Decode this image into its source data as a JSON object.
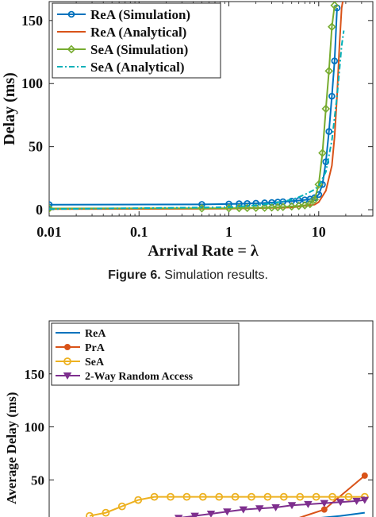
{
  "caption": {
    "label": "Figure 6.",
    "text": "Simulation results."
  },
  "chart_data": [
    {
      "type": "line",
      "xscale": "log",
      "xlabel": "Arrival Rate = λ",
      "ylabel": "Delay (ms)",
      "xlim": [
        0.01,
        40
      ],
      "ylim": [
        -5,
        165
      ],
      "xticks": [
        0.01,
        0.1,
        1,
        10
      ],
      "xtick_labels": [
        "0.01",
        "0.1",
        "1",
        "10"
      ],
      "yticks": [
        0,
        50,
        100,
        150
      ],
      "ytick_labels": [
        "0",
        "50",
        "100",
        "150"
      ],
      "legend_position": "top-left",
      "series": [
        {
          "name": "ReA (Simulation)",
          "color": "#0072BD",
          "marker": "circle",
          "dash": "solid",
          "x": [
            0.01,
            0.5,
            1,
            1.3,
            1.6,
            2,
            2.5,
            3,
            3.5,
            4,
            5,
            6,
            7,
            8,
            9,
            10,
            11,
            12,
            13,
            14,
            15,
            16
          ],
          "y": [
            4,
            4.2,
            4.5,
            4.7,
            4.9,
            5.1,
            5.4,
            5.7,
            6,
            6.3,
            6.8,
            7.3,
            7.8,
            8.4,
            9.5,
            12,
            20,
            38,
            62,
            90,
            118,
            160
          ]
        },
        {
          "name": "ReA (Analytical)",
          "color": "#D95319",
          "marker": "none",
          "dash": "solid",
          "x": [
            0.01,
            1,
            5,
            9,
            10,
            12,
            14,
            15,
            16,
            17,
            18,
            18.5
          ],
          "y": [
            0.5,
            0.8,
            1.8,
            4,
            6,
            15,
            35,
            58,
            90,
            130,
            160,
            165
          ]
        },
        {
          "name": "SeA (Simulation)",
          "color": "#77AC30",
          "marker": "diamond",
          "dash": "solid",
          "x": [
            0.01,
            0.5,
            1,
            1.3,
            1.6,
            2,
            2.5,
            3,
            3.5,
            4,
            5,
            6,
            7,
            8,
            9,
            10,
            11,
            12,
            13,
            14,
            15
          ],
          "y": [
            1,
            1.1,
            1.2,
            1.3,
            1.4,
            1.5,
            1.6,
            1.8,
            2,
            2.2,
            2.6,
            3,
            3.5,
            4.5,
            8,
            20,
            45,
            80,
            110,
            145,
            162
          ]
        },
        {
          "name": "SeA (Analytical)",
          "color": "#00B0B8",
          "marker": "none",
          "dash": "dashdot",
          "x": [
            0.01,
            1,
            2,
            3,
            4,
            5,
            6,
            7,
            8,
            9,
            10,
            12,
            14,
            16,
            18,
            19
          ],
          "y": [
            0.5,
            2,
            3.5,
            5,
            6.5,
            8,
            10,
            12,
            14,
            16,
            19,
            30,
            55,
            90,
            130,
            142
          ]
        }
      ]
    },
    {
      "type": "line",
      "xscale": "linear",
      "xlabel": "",
      "ylabel": "Average Delay (ms)",
      "xlim": [
        0,
        20
      ],
      "ylim": [
        0,
        200
      ],
      "yticks": [
        50,
        100,
        150
      ],
      "ytick_labels": [
        "50",
        "100",
        "150"
      ],
      "legend_position": "top-left",
      "series": [
        {
          "name": "ReA",
          "color": "#0072BD",
          "marker": "none",
          "x": [
            10,
            12,
            14,
            16,
            18,
            19.5
          ],
          "y": [
            6,
            8,
            10,
            13,
            16,
            19
          ]
        },
        {
          "name": "PrA",
          "color": "#D95319",
          "marker": "circle",
          "x": [
            13,
            15,
            17,
            19.5
          ],
          "y": [
            6,
            12,
            22,
            54
          ]
        },
        {
          "name": "SeA",
          "color": "#EDB120",
          "marker": "circle-open",
          "x": [
            2.5,
            3.5,
            4.5,
            5.5,
            6.5,
            7.5,
            8.5,
            9.5,
            10.5,
            11.5,
            12.5,
            13.5,
            14.5,
            15.5,
            16.5,
            17.5,
            18.5,
            19.5
          ],
          "y": [
            16,
            19,
            25,
            31,
            34,
            34,
            34,
            34,
            34,
            34,
            34,
            34,
            34,
            34,
            34,
            34,
            34,
            34
          ]
        },
        {
          "name": "2-Way Random Access",
          "color": "#7E2F8E",
          "marker": "triangle-down",
          "x": [
            4,
            5,
            6,
            7,
            8,
            9,
            10,
            11,
            12,
            13,
            14,
            15,
            16,
            17,
            18,
            19,
            19.5
          ],
          "y": [
            6,
            8,
            10,
            12,
            14,
            16,
            18,
            20,
            22,
            23,
            24,
            26,
            27,
            28,
            29,
            30,
            31
          ]
        }
      ]
    }
  ]
}
